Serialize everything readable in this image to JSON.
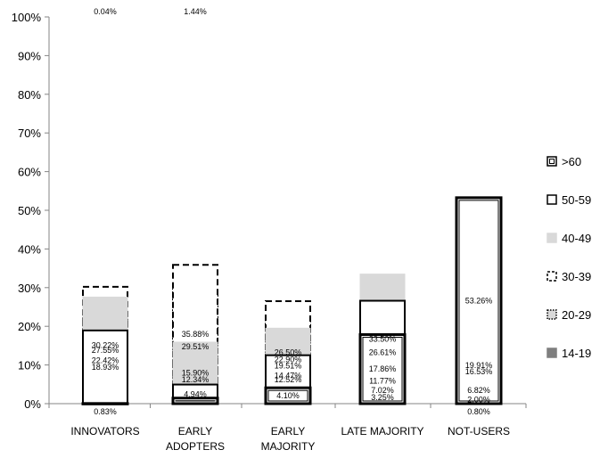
{
  "chart_data": {
    "type": "bar",
    "stacked": true,
    "normalized": true,
    "categories": [
      [
        "INNOVATORS"
      ],
      [
        "EARLY",
        "ADOPTERS"
      ],
      [
        "EARLY",
        "MAJORITY"
      ],
      [
        "LATE MAJORITY"
      ],
      [
        "NOT-USERS"
      ]
    ],
    "series": [
      {
        "name": "14-19",
        "color": "#7f7f7f",
        "border": "#7f7f7f",
        "dash": "solid",
        "values": [
          0.83,
          12.34,
          14.47,
          7.02,
          0.8
        ],
        "labels": [
          "0.83%",
          "12.34%",
          "14.47%",
          "7.02%",
          "0.80%"
        ]
      },
      {
        "name": "20-29",
        "color": "#d9d9d9",
        "border": "#000000",
        "dash": "dotted",
        "values": [
          22.42,
          29.51,
          22.9,
          11.77,
          2.0
        ],
        "labels": [
          "22.42%",
          "29.51%",
          "22.90%",
          "11.77%",
          "2.00%"
        ]
      },
      {
        "name": "30-39",
        "color": "#ffffff",
        "border": "#000000",
        "dash": "dashed",
        "values": [
          30.22,
          35.88,
          26.5,
          3.25,
          6.82
        ],
        "labels": [
          "30.22%",
          "35.88%",
          "26.50%",
          "3.25%",
          "6.82%"
        ]
      },
      {
        "name": "40-49",
        "color": "#d9d9d9",
        "border": "#d9d9d9",
        "dash": "solid",
        "values": [
          27.55,
          15.9,
          19.51,
          33.5,
          16.53
        ],
        "labels": [
          "27.55%",
          "15.90%",
          "19.51%",
          "33.50%",
          "16.53%"
        ]
      },
      {
        "name": "50-59",
        "color": "#ffffff",
        "border": "#000000",
        "dash": "solid",
        "values": [
          18.93,
          4.94,
          12.52,
          26.61,
          19.91
        ],
        "labels": [
          "18.93%",
          "4.94%",
          "12.52%",
          "26.61%",
          "19.91%"
        ]
      },
      {
        "name": ">60",
        "color": "#ffffff",
        "border": "#000000",
        "dash": "double",
        "values": [
          0.04,
          1.44,
          4.1,
          17.86,
          53.26
        ],
        "labels": [
          "0.04%",
          "1.44%",
          "4.10%",
          "17.86%",
          "53.26%"
        ]
      }
    ],
    "yticks": [
      "0%",
      "10%",
      "20%",
      "30%",
      "40%",
      "50%",
      "60%",
      "70%",
      "80%",
      "90%",
      "100%"
    ],
    "ylim": [
      0,
      100
    ],
    "legend": {
      "position": "right",
      "entries": [
        ">60",
        "50-59",
        "40-49",
        "30-39",
        "20-29",
        "14-19"
      ]
    },
    "grid": false
  }
}
